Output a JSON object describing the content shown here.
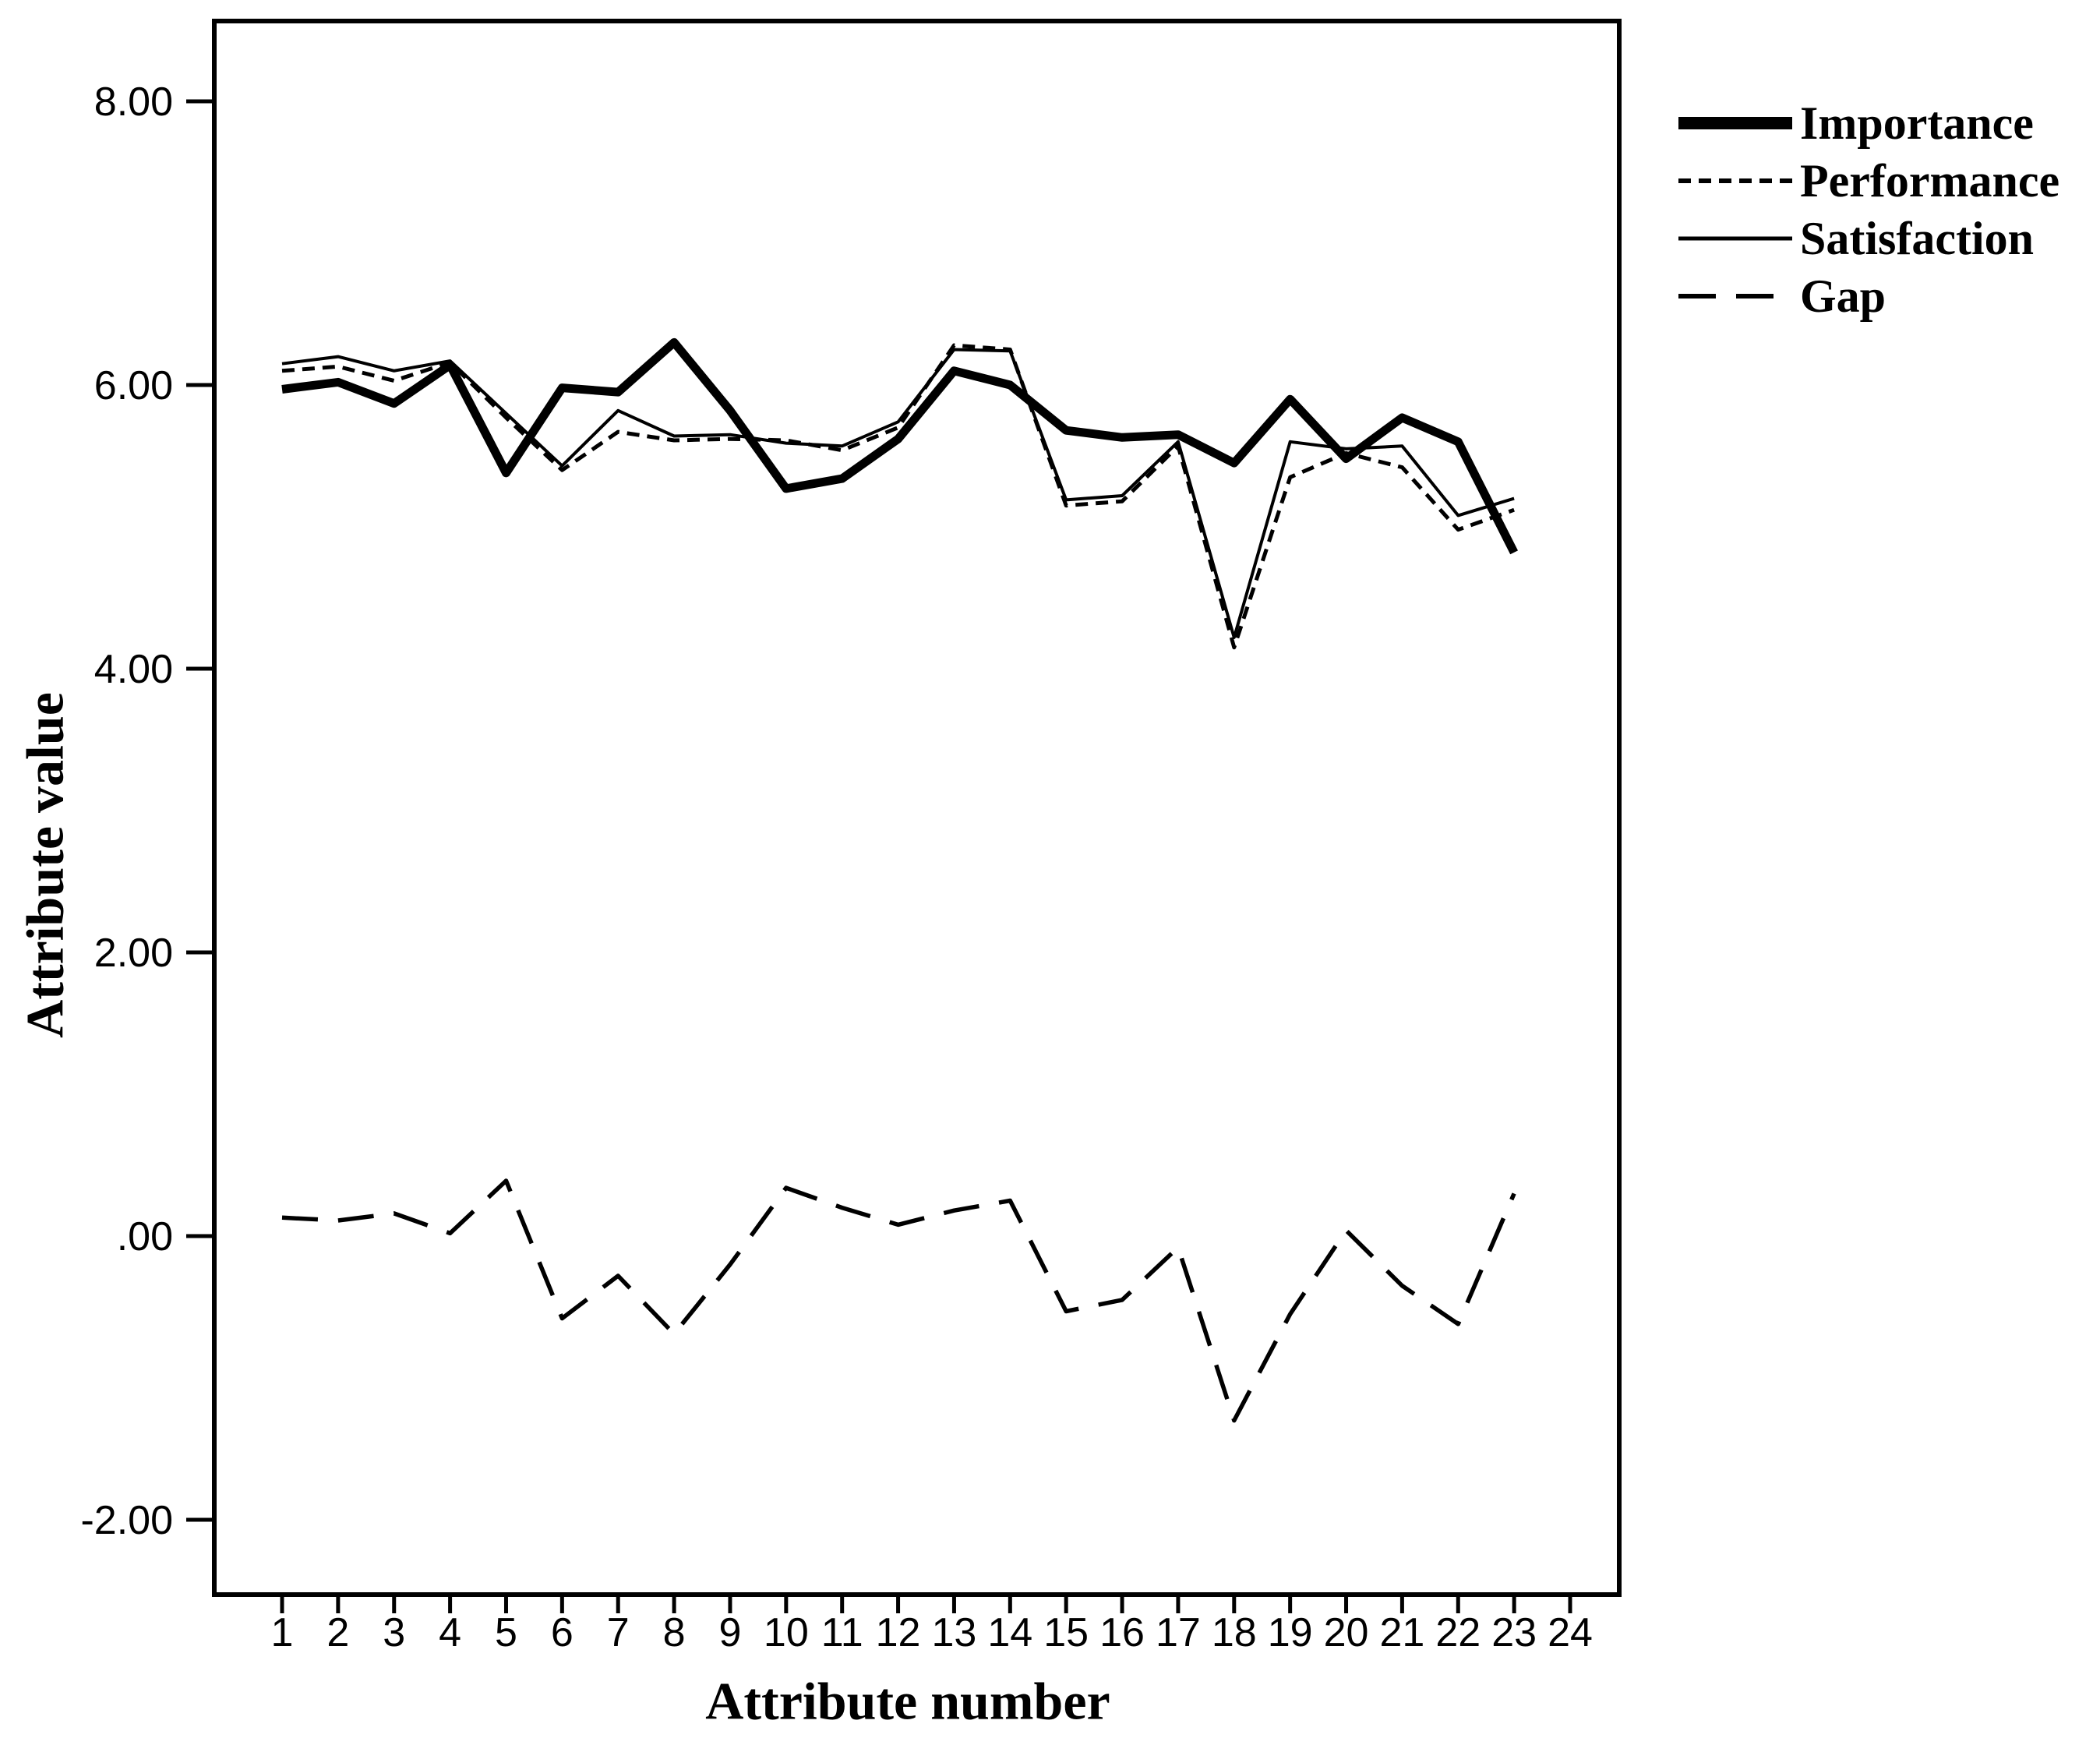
{
  "colors": {
    "foreground": "#000000",
    "background": "#ffffff"
  },
  "y_axis": {
    "label": "Attribute value",
    "tick_labels": [
      "8.00",
      "6.00",
      "4.00",
      "2.00",
      ".00",
      "-2.00"
    ],
    "tick_values": [
      8,
      6,
      4,
      2,
      0,
      -2
    ]
  },
  "x_axis": {
    "label": "Attribute number",
    "tick_labels": [
      "1",
      "2",
      "3",
      "4",
      "5",
      "6",
      "7",
      "8",
      "9",
      "10",
      "11",
      "12",
      "13",
      "14",
      "15",
      "16",
      "17",
      "18",
      "19",
      "20",
      "21",
      "22",
      "23",
      "24"
    ],
    "tick_values": [
      1,
      2,
      3,
      4,
      5,
      6,
      7,
      8,
      9,
      10,
      11,
      12,
      13,
      14,
      15,
      16,
      17,
      18,
      19,
      20,
      21,
      22,
      23,
      24
    ]
  },
  "legend": {
    "items": [
      {
        "label": "Importance",
        "series": "Importance",
        "swatch": {
          "width": 16,
          "dash": ""
        }
      },
      {
        "label": "Performance",
        "series": "Performance",
        "swatch": {
          "width": 6,
          "dash": "16 10"
        }
      },
      {
        "label": "Satisfaction",
        "series": "Satisfaction",
        "swatch": {
          "width": 5,
          "dash": ""
        }
      },
      {
        "label": "Gap",
        "series": "Gap",
        "swatch": {
          "width": 6,
          "dash": "48 26"
        }
      }
    ]
  },
  "chart_data": {
    "type": "line",
    "title": "",
    "xlabel": "Attribute number",
    "ylabel": "Attribute value",
    "x_axis_shown_range": [
      1,
      24
    ],
    "ylim": [
      -2.5,
      8.6
    ],
    "grid": false,
    "legend_position": "outside-top-right",
    "x": [
      1,
      2,
      3,
      4,
      5,
      6,
      7,
      8,
      9,
      10,
      11,
      12,
      13,
      14,
      15,
      16,
      17,
      18,
      19,
      20,
      21,
      22,
      23
    ],
    "series": [
      {
        "name": "Importance",
        "style": "solid-thick",
        "stroke_width": 11,
        "dash": null,
        "values": [
          5.97,
          6.02,
          5.87,
          6.14,
          5.38,
          5.98,
          5.95,
          6.3,
          5.82,
          5.27,
          5.34,
          5.62,
          6.1,
          6.0,
          5.68,
          5.63,
          5.65,
          5.45,
          5.9,
          5.48,
          5.77,
          5.6,
          4.82
        ]
      },
      {
        "name": "Performance",
        "style": "short-dash",
        "stroke_width": 5,
        "dash": [
          16,
          10
        ],
        "values": [
          6.1,
          6.13,
          6.03,
          6.16,
          5.77,
          5.4,
          5.67,
          5.61,
          5.62,
          5.61,
          5.54,
          5.7,
          6.28,
          6.25,
          5.15,
          5.18,
          5.57,
          4.15,
          5.35,
          5.52,
          5.42,
          4.98,
          5.12
        ]
      },
      {
        "name": "Satisfaction",
        "style": "solid-thin",
        "stroke_width": 4,
        "dash": null,
        "values": [
          6.15,
          6.2,
          6.1,
          6.17,
          5.8,
          5.43,
          5.82,
          5.64,
          5.65,
          5.59,
          5.57,
          5.74,
          6.25,
          6.24,
          5.19,
          5.22,
          5.6,
          4.22,
          5.6,
          5.55,
          5.57,
          5.08,
          5.2
        ]
      },
      {
        "name": "Gap",
        "style": "long-dash",
        "stroke_width": 5.5,
        "dash": [
          46,
          26
        ],
        "values": [
          0.13,
          0.11,
          0.16,
          0.02,
          0.39,
          -0.58,
          -0.28,
          -0.69,
          -0.2,
          0.34,
          0.2,
          0.08,
          0.18,
          0.25,
          -0.53,
          -0.45,
          -0.08,
          -1.3,
          -0.55,
          0.04,
          -0.35,
          -0.62,
          0.3
        ]
      }
    ]
  }
}
